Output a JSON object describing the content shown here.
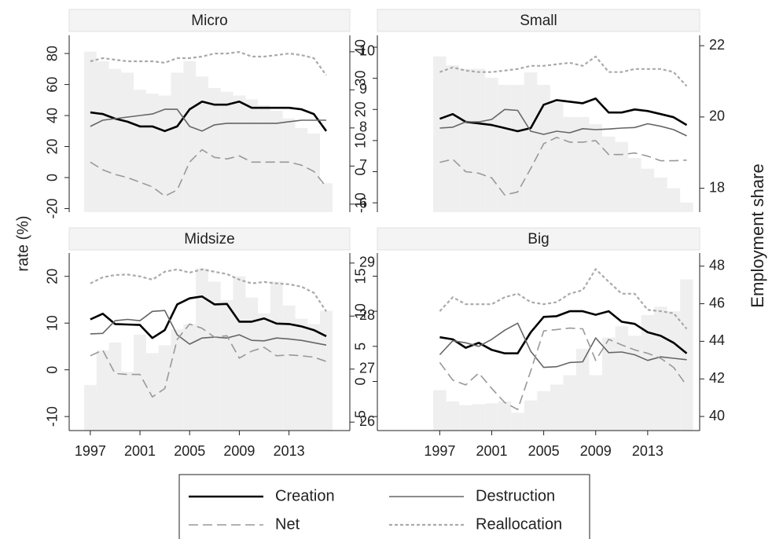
{
  "ylabel": "rate (%)",
  "y2label": "Employment share",
  "chart_data": [
    {
      "type": "line",
      "title": "Micro",
      "x": [
        1997,
        1998,
        1999,
        2000,
        2001,
        2002,
        2003,
        2004,
        2005,
        2006,
        2007,
        2008,
        2009,
        2010,
        2011,
        2012,
        2013,
        2014,
        2015,
        2016
      ],
      "xlim": [
        1995.3,
        2017.9
      ],
      "ylim": [
        -22.3,
        91.7
      ],
      "yticks": [
        -20,
        0,
        20,
        40,
        60,
        80
      ],
      "y2lim": [
        5.79,
        10.43
      ],
      "y2ticks": [
        6,
        7,
        8,
        9,
        10
      ],
      "series": [
        {
          "name": "Creation",
          "color": "#000000",
          "line_style": "solid",
          "values": [
            42,
            41,
            38,
            36,
            33,
            33,
            30,
            33,
            44,
            49,
            47,
            47,
            49,
            45,
            45,
            45,
            45,
            44,
            41,
            30
          ]
        },
        {
          "name": "Destruction",
          "color": "#666666",
          "line_style": "thin",
          "values": [
            33,
            37,
            38,
            39,
            40,
            41,
            44,
            44,
            33,
            30,
            34,
            35,
            35,
            35,
            35,
            35,
            36,
            37,
            37,
            37
          ]
        },
        {
          "name": "Net",
          "color": "#999999",
          "line_style": "dashed",
          "values": [
            10,
            5,
            2,
            0,
            -3,
            -6,
            -12,
            -8,
            10,
            18,
            13,
            12,
            14,
            10,
            10,
            10,
            10,
            8,
            4,
            -6
          ]
        },
        {
          "name": "Reallocation",
          "color": "#aaaaaa",
          "line_style": "dotted",
          "values": [
            75,
            77,
            76,
            75,
            75,
            75,
            74,
            77,
            77,
            78,
            80,
            80,
            81,
            78,
            78,
            79,
            80,
            79,
            77,
            66
          ]
        },
        {
          "type": "bar",
          "axis": "y2",
          "color": "#efefef",
          "values": [
            10.0,
            9.75,
            9.55,
            9.45,
            9.0,
            8.9,
            8.85,
            9.45,
            9.75,
            9.35,
            9.05,
            8.95,
            8.85,
            8.75,
            8.6,
            8.45,
            8.25,
            8.0,
            7.85,
            6.55
          ]
        }
      ]
    },
    {
      "type": "line",
      "title": "Small",
      "x": [
        1997,
        1998,
        1999,
        2000,
        2001,
        2002,
        2003,
        2004,
        2005,
        2006,
        2007,
        2008,
        2009,
        2010,
        2011,
        2012,
        2013,
        2014,
        2015,
        2016
      ],
      "xlim": [
        1992.2,
        2017.0
      ],
      "ylim": [
        -13,
        43.8
      ],
      "yticks": [
        -10,
        0,
        10,
        20,
        30,
        40
      ],
      "y2lim": [
        17.33,
        22.29
      ],
      "y2ticks": [
        18,
        20,
        22
      ],
      "series": [
        {
          "name": "Creation",
          "color": "#000000",
          "line_style": "solid",
          "values": [
            17,
            18.5,
            16,
            15.5,
            15,
            14,
            13,
            14,
            21.5,
            23,
            22.5,
            22,
            23.5,
            19,
            19,
            20,
            19.5,
            18.5,
            17.5,
            15
          ]
        },
        {
          "name": "Destruction",
          "color": "#666666",
          "line_style": "thin",
          "values": [
            14,
            14.3,
            16,
            16,
            16.8,
            20,
            19.7,
            13,
            12,
            13,
            12.5,
            13.8,
            13.5,
            13.7,
            14,
            14.2,
            15.4,
            14.6,
            13.5,
            11.5
          ]
        },
        {
          "name": "Net",
          "color": "#999999",
          "line_style": "dashed",
          "values": [
            3,
            4,
            0,
            -0.5,
            -2,
            -7.5,
            -6.5,
            1,
            9,
            11,
            9.5,
            9.5,
            10,
            5.5,
            5.5,
            6,
            5,
            3.5,
            3.5,
            3.7
          ]
        },
        {
          "name": "Reallocation",
          "color": "#aaaaaa",
          "line_style": "dotted",
          "values": [
            32,
            33.5,
            32.5,
            32,
            32,
            32.5,
            33,
            34,
            34,
            34.5,
            35,
            34,
            37,
            32,
            32,
            33,
            33,
            33,
            32,
            27.5
          ]
        },
        {
          "type": "bar",
          "axis": "y2",
          "color": "#efefef",
          "values": [
            21.7,
            21.45,
            21.35,
            21.35,
            21.1,
            20.9,
            20.9,
            21.25,
            20.9,
            20.4,
            20.0,
            20.0,
            19.8,
            19.45,
            19.3,
            18.85,
            18.55,
            18.3,
            18.0,
            17.6
          ]
        }
      ]
    },
    {
      "type": "line",
      "title": "Midsize",
      "x": [
        1997,
        1998,
        1999,
        2000,
        2001,
        2002,
        2003,
        2004,
        2005,
        2006,
        2007,
        2008,
        2009,
        2010,
        2011,
        2012,
        2013,
        2014,
        2015,
        2016
      ],
      "xlim": [
        1995.3,
        2017.9
      ],
      "xticks": [
        1997,
        2001,
        2005,
        2009,
        2013
      ],
      "ylim": [
        -13,
        25
      ],
      "yticks": [
        -10,
        0,
        10,
        20
      ],
      "y2lim": [
        25.84,
        29.19
      ],
      "y2ticks": [
        26,
        27,
        28,
        29
      ],
      "series": [
        {
          "name": "Creation",
          "color": "#000000",
          "line_style": "solid",
          "values": [
            10.8,
            12,
            9.8,
            9.7,
            9.6,
            6.8,
            8.5,
            14,
            15.3,
            15.7,
            14,
            14.1,
            10.3,
            10.3,
            11,
            9.9,
            9.8,
            9.3,
            8.5,
            7.2
          ]
        },
        {
          "name": "Destruction",
          "color": "#666666",
          "line_style": "thin",
          "values": [
            7.7,
            7.8,
            10.5,
            10.8,
            10.5,
            12.5,
            12.7,
            7.5,
            5.5,
            6.8,
            7,
            6.8,
            7.5,
            6.3,
            6.2,
            6.8,
            6.6,
            6.3,
            5.8,
            5.3
          ]
        },
        {
          "name": "Net",
          "color": "#999999",
          "line_style": "dashed",
          "values": [
            3,
            4.2,
            -0.8,
            -1,
            -1,
            -5.8,
            -4,
            6.5,
            9.8,
            8.9,
            7,
            7.3,
            2.5,
            4,
            4.8,
            3,
            3.2,
            3,
            2.7,
            1.8
          ]
        },
        {
          "name": "Reallocation",
          "color": "#aaaaaa",
          "line_style": "dotted",
          "values": [
            18.5,
            19.8,
            20.3,
            20.4,
            20,
            19.3,
            21,
            21.5,
            20.8,
            21.5,
            21,
            20.5,
            19.3,
            18.5,
            18.8,
            18.5,
            18.3,
            17.8,
            16.5,
            12.5
          ]
        },
        {
          "type": "bar",
          "axis": "y2",
          "color": "#efefef",
          "values": [
            26.7,
            27.35,
            27.5,
            26.95,
            27.65,
            27.3,
            27.45,
            27.75,
            27.85,
            28.9,
            28.65,
            28.3,
            28.75,
            28.35,
            28.05,
            28.65,
            28.2,
            27.95,
            27.85,
            28.1
          ]
        }
      ]
    },
    {
      "type": "line",
      "title": "Big",
      "x": [
        1997,
        1998,
        1999,
        2000,
        2001,
        2002,
        2003,
        2004,
        2005,
        2006,
        2007,
        2008,
        2009,
        2010,
        2011,
        2012,
        2013,
        2014,
        2015,
        2016
      ],
      "xlim": [
        1992.2,
        2017.0
      ],
      "xticks": [
        1997,
        2001,
        2005,
        2009,
        2013
      ],
      "ylim": [
        -7,
        18.3
      ],
      "yticks": [
        -5,
        0,
        5,
        10,
        15
      ],
      "y2lim": [
        39.25,
        48.7
      ],
      "y2ticks": [
        40,
        42,
        44,
        46,
        48
      ],
      "series": [
        {
          "name": "Creation",
          "color": "#000000",
          "line_style": "solid",
          "values": [
            6.3,
            6,
            4.8,
            5.5,
            4.5,
            4,
            4,
            7,
            9.2,
            9.3,
            10,
            10,
            9.5,
            10,
            8.5,
            8.2,
            7,
            6.5,
            5.5,
            4
          ]
        },
        {
          "name": "Destruction",
          "color": "#666666",
          "line_style": "thin",
          "values": [
            3.8,
            5.8,
            5.5,
            5,
            6,
            7.3,
            8.3,
            4.3,
            2,
            2.1,
            2.7,
            2.8,
            6.2,
            4.1,
            4.2,
            3.8,
            3,
            3.5,
            3.3,
            3.1
          ]
        },
        {
          "name": "Net",
          "color": "#999999",
          "line_style": "dashed",
          "values": [
            2.7,
            0.2,
            -0.5,
            1.2,
            -1,
            -3,
            -4,
            1.5,
            7.2,
            7.4,
            7.6,
            7.5,
            3,
            6,
            5.2,
            4.5,
            4,
            3.3,
            2,
            -0.6
          ]
        },
        {
          "name": "Reallocation",
          "color": "#aaaaaa",
          "line_style": "dotted",
          "values": [
            10,
            12,
            11,
            11,
            11,
            12,
            12.5,
            11.3,
            11,
            11.3,
            12.5,
            13,
            16,
            14.2,
            12.5,
            12.5,
            10.2,
            10,
            9.7,
            7.5
          ]
        },
        {
          "type": "bar",
          "axis": "y2",
          "color": "#efefef",
          "values": [
            41.4,
            40.8,
            40.6,
            40.65,
            40.7,
            40.8,
            40.2,
            40.85,
            41.35,
            41.7,
            42.2,
            43.6,
            42.2,
            44.2,
            44.8,
            44.3,
            45.4,
            45.85,
            45.6,
            47.3
          ]
        }
      ]
    }
  ]
}
